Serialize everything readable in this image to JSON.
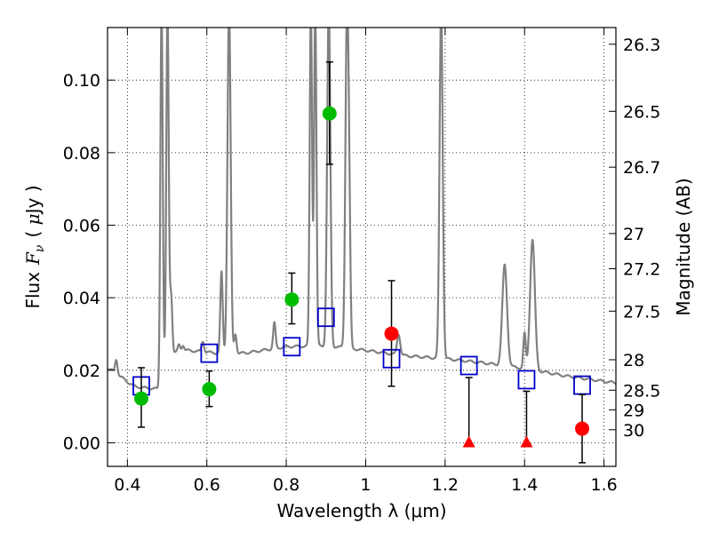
{
  "chart_data": {
    "type": "scatter",
    "title": "",
    "xlabel": "Wavelength  λ (μm)",
    "ylabel_parts": {
      "prefix": "Flux",
      "symbol": "F",
      "subscript": "ν",
      "unit_open": "( ",
      "unit_mu": "μ",
      "unit_rest": "Jy )"
    },
    "y2label": "Magnitude (AB)",
    "xlim": [
      0.35,
      1.63
    ],
    "ylim": [
      -0.0065,
      0.1145
    ],
    "xticks": [
      0.4,
      0.6,
      0.8,
      1.0,
      1.2,
      1.4,
      1.6
    ],
    "xtick_labels": [
      "0.4",
      "0.6",
      "0.8",
      "1",
      "1.2",
      "1.4",
      "1.6"
    ],
    "yticks": [
      0.0,
      0.02,
      0.04,
      0.06,
      0.08,
      0.1
    ],
    "ytick_labels": [
      "0.00",
      "0.02",
      "0.04",
      "0.06",
      "0.08",
      "0.10"
    ],
    "right_ticks": [
      {
        "label": "26.3",
        "flux": 0.1099
      },
      {
        "label": "26.5",
        "flux": 0.0914
      },
      {
        "label": "26.7",
        "flux": 0.076
      },
      {
        "label": "27",
        "flux": 0.0577
      },
      {
        "label": "27.2",
        "flux": 0.048
      },
      {
        "label": "27.5",
        "flux": 0.0363
      },
      {
        "label": "28",
        "flux": 0.0229
      },
      {
        "label": "28.5",
        "flux": 0.0145
      },
      {
        "label": "29",
        "flux": 0.0091
      },
      {
        "label": "30",
        "flux": 0.0036
      }
    ],
    "grid": true,
    "colors": {
      "sed": "#808080",
      "green": "#00bb00",
      "red": "#ff0000",
      "model": "#0000cc",
      "errorbar": "#000000"
    },
    "sed_continuum": {
      "x": [
        0.35,
        0.36,
        0.38,
        0.4,
        0.42,
        0.44,
        0.46,
        0.48,
        0.49,
        0.5,
        0.55,
        0.6,
        0.65,
        0.7,
        0.8,
        0.9,
        1.0,
        1.1,
        1.2,
        1.3,
        1.4,
        1.5,
        1.63
      ],
      "y": [
        0.0205,
        0.02,
        0.0185,
        0.0168,
        0.0155,
        0.0152,
        0.015,
        0.0148,
        0.018,
        0.0245,
        0.0255,
        0.025,
        0.0245,
        0.0248,
        0.0265,
        0.0268,
        0.0255,
        0.024,
        0.0232,
        0.022,
        0.0205,
        0.0185,
        0.0165
      ]
    },
    "sed_lines": [
      {
        "x": 0.372,
        "peak": 0.023,
        "w": 0.003
      },
      {
        "x": 0.486,
        "peak": 0.12,
        "w": 0.003
      },
      {
        "x": 0.501,
        "peak": 0.12,
        "w": 0.003
      },
      {
        "x": 0.51,
        "peak": 0.041,
        "w": 0.003
      },
      {
        "x": 0.53,
        "peak": 0.027,
        "w": 0.003
      },
      {
        "x": 0.54,
        "peak": 0.027,
        "w": 0.003
      },
      {
        "x": 0.59,
        "peak": 0.028,
        "w": 0.003
      },
      {
        "x": 0.637,
        "peak": 0.047,
        "w": 0.003
      },
      {
        "x": 0.656,
        "peak": 0.12,
        "w": 0.004
      },
      {
        "x": 0.672,
        "peak": 0.03,
        "w": 0.003
      },
      {
        "x": 0.77,
        "peak": 0.033,
        "w": 0.003
      },
      {
        "x": 0.862,
        "peak": 0.12,
        "w": 0.003
      },
      {
        "x": 0.873,
        "peak": 0.12,
        "w": 0.003
      },
      {
        "x": 0.907,
        "peak": 0.12,
        "w": 0.004
      },
      {
        "x": 0.953,
        "peak": 0.12,
        "w": 0.004
      },
      {
        "x": 0.959,
        "peak": 0.049,
        "w": 0.003
      },
      {
        "x": 1.083,
        "peak": 0.03,
        "w": 0.004
      },
      {
        "x": 1.19,
        "peak": 0.12,
        "w": 0.004
      },
      {
        "x": 1.35,
        "peak": 0.049,
        "w": 0.006
      },
      {
        "x": 1.4,
        "peak": 0.03,
        "w": 0.003
      },
      {
        "x": 1.42,
        "peak": 0.056,
        "w": 0.006
      }
    ],
    "green_points": [
      {
        "x": 0.435,
        "y": 0.0122,
        "err_lo": 0.0043,
        "err_hi": 0.0207
      },
      {
        "x": 0.606,
        "y": 0.0148,
        "err_lo": 0.01,
        "err_hi": 0.0198
      },
      {
        "x": 0.814,
        "y": 0.0395,
        "err_lo": 0.0328,
        "err_hi": 0.0468
      },
      {
        "x": 0.909,
        "y": 0.0908,
        "err_lo": 0.0768,
        "err_hi": 0.105
      }
    ],
    "red_points": [
      {
        "x": 1.065,
        "y": 0.0301,
        "err_lo": 0.0156,
        "err_hi": 0.0447
      },
      {
        "x": 1.545,
        "y": 0.0039,
        "err_lo": -0.0055,
        "err_hi": 0.0133
      }
    ],
    "red_triangles": [
      {
        "x": 1.26,
        "y": 0.0,
        "err_hi": 0.018
      },
      {
        "x": 1.405,
        "y": 0.0,
        "err_hi": 0.0142
      }
    ],
    "model_squares": [
      {
        "x": 0.435,
        "y": 0.0157
      },
      {
        "x": 0.606,
        "y": 0.0247
      },
      {
        "x": 0.814,
        "y": 0.0265
      },
      {
        "x": 0.9,
        "y": 0.0346
      },
      {
        "x": 1.065,
        "y": 0.0232
      },
      {
        "x": 1.26,
        "y": 0.0213
      },
      {
        "x": 1.405,
        "y": 0.0174
      },
      {
        "x": 1.545,
        "y": 0.0159
      }
    ]
  }
}
